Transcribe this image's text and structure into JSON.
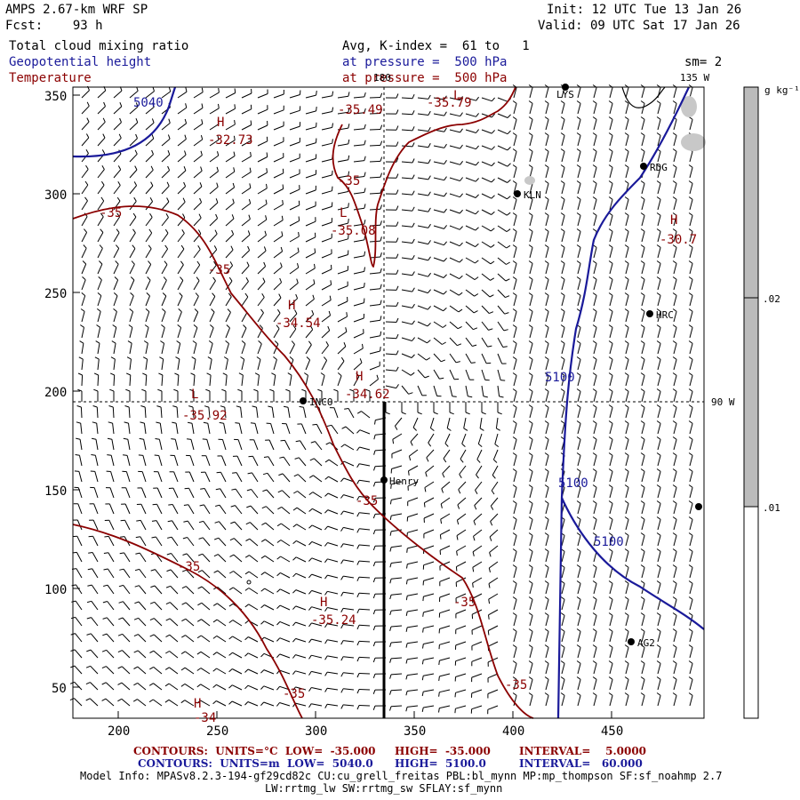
{
  "header": {
    "model": "AMPS 2.67-km WRF SP",
    "forecast": "Fcst:    93 h",
    "init": "Init: 12 UTC Tue 13 Jan 26",
    "valid": "Valid: 09 UTC Sat 17 Jan 26",
    "field1": "Total cloud mixing ratio",
    "field2": "Geopotential height",
    "field3": "Temperature",
    "avg": "Avg, K-index =  61 to   1",
    "pressure1": "at pressure =  500 hPa",
    "pressure2": "at pressure =  500 hPa",
    "smooth": "sm= 2",
    "lon180": "180",
    "lon135": "135 W",
    "lon90": "90 W"
  },
  "colorbar": {
    "unit": "g kg⁻¹",
    "labels": [
      ".02",
      ".01"
    ],
    "levels": [
      0.01,
      0.02
    ],
    "fill_color": "#bbbbbb"
  },
  "axes": {
    "x_ticks": [
      "200",
      "250",
      "300",
      "350",
      "400",
      "450"
    ],
    "y_ticks": [
      "350",
      "300",
      "250",
      "200",
      "150",
      "100",
      "50"
    ]
  },
  "stations": [
    {
      "name": "LYS"
    },
    {
      "name": "RDG"
    },
    {
      "name": "KLN"
    },
    {
      "name": "HRC"
    },
    {
      "name": "INCO"
    },
    {
      "name": "Henry"
    },
    {
      "name": "AG2"
    }
  ],
  "contour_labels": {
    "height": [
      "5040",
      "5100",
      "5100",
      "5100"
    ],
    "temperature": [
      "-35.49",
      "-35.79",
      "-35",
      "-35.08",
      "-35",
      "-35",
      "-34.54",
      "-34.62",
      "-35.92",
      "-35",
      "-35",
      "-35.24",
      "-35",
      "-35",
      "-35",
      "-32.73",
      "-30.7",
      "-34"
    ],
    "highs_lows": [
      "H",
      "L",
      "H",
      "H",
      "L",
      "H",
      "H",
      "L",
      "H"
    ]
  },
  "footer": {
    "row1_a": "CONTOURS:  UNITS=°C  LOW=  -35.000",
    "row1_b": "HIGH=  -35.000",
    "row1_c": "INTERVAL=    5.0000",
    "row2_a": "CONTOURS:  UNITS=m  LOW=  5040.0",
    "row2_b": "HIGH=  5100.0",
    "row2_c": "INTERVAL=   60.000",
    "model_info_1": "Model Info: MPASv8.2.3-194-gf29cd82c CU:cu_grell_freitas PBL:bl_mynn MP:mp_thompson SF:sf_noahmp 2.7",
    "model_info_2": "LW:rrtmg_lw SW:rrtmg_sw SFLAY:sf_mynn"
  }
}
